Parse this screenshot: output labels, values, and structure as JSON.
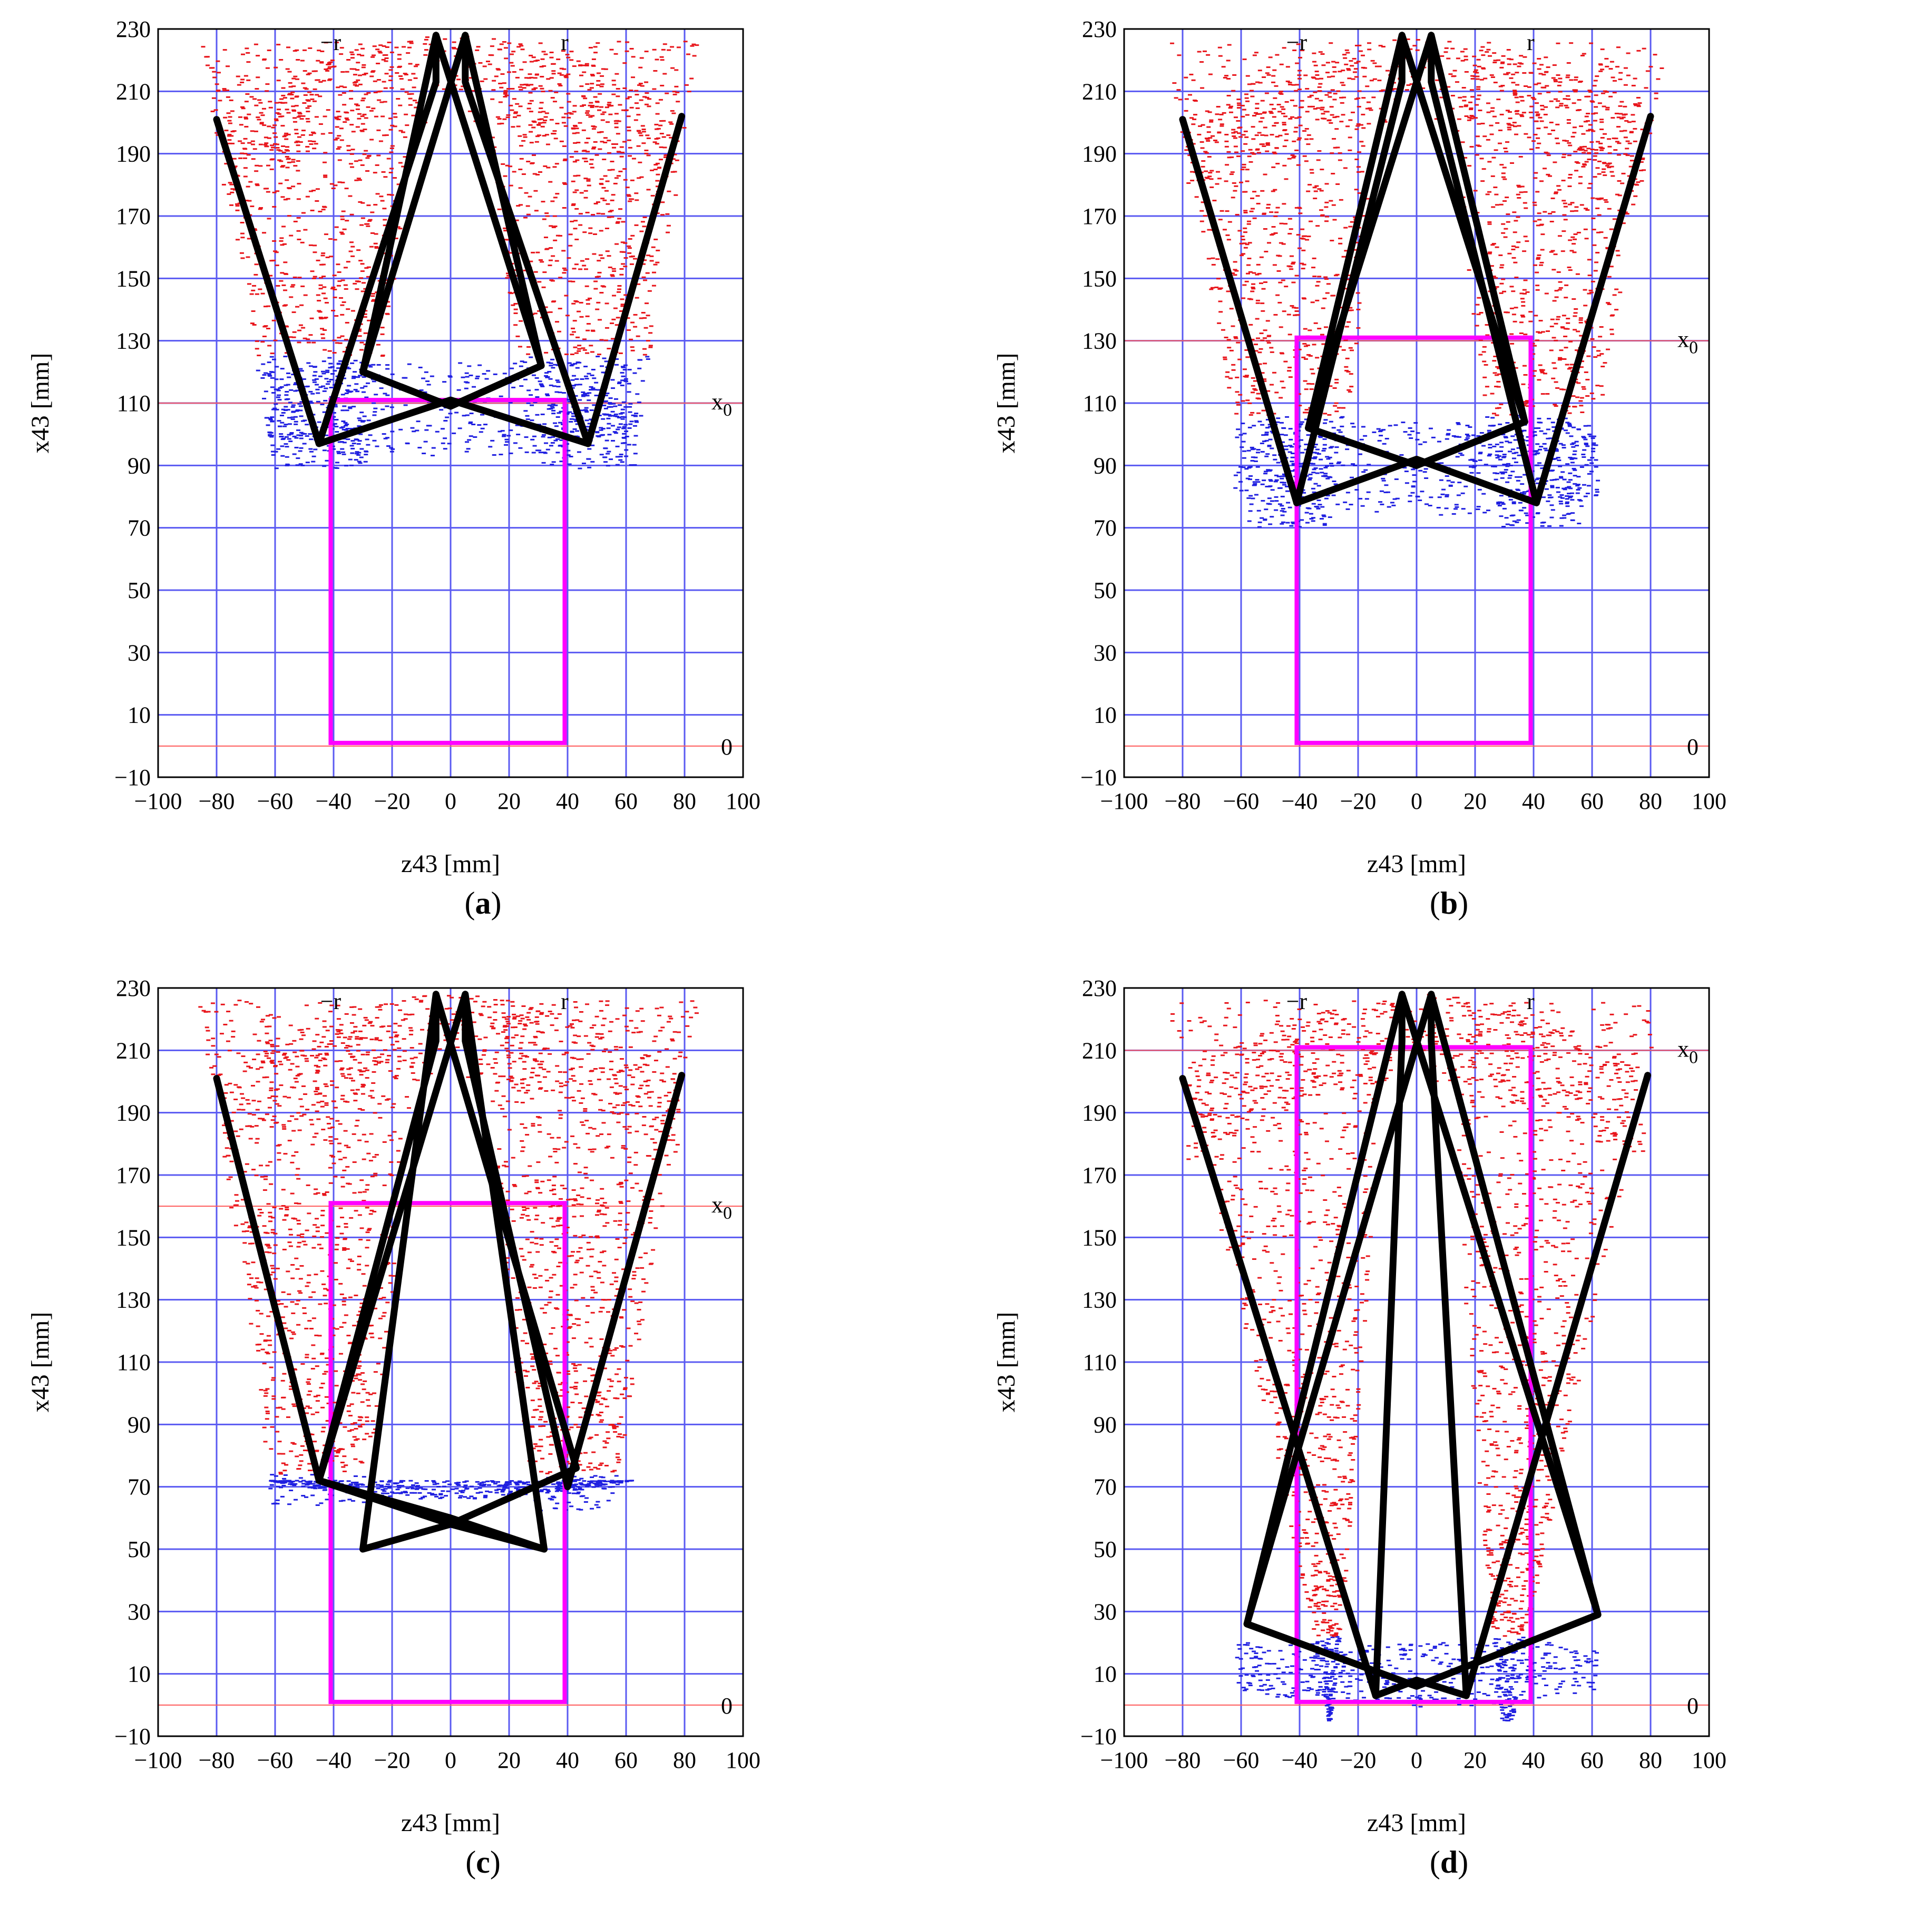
{
  "colors": {
    "grid": "#5a5af2",
    "cloud": "#e8151b",
    "cloud_low": "#1f1fe0",
    "mechanism": "#000000",
    "frame": "#ff00ff",
    "ref_line": "#ff5a5a"
  },
  "chart_data": [
    {
      "type": "scatter",
      "panel": "a",
      "caption_open": "(",
      "caption_letter": "a",
      "caption_close": ")",
      "xlabel": "z43 [mm]",
      "ylabel": "x43 [mm]",
      "xlim": [
        -100,
        100
      ],
      "ylim": [
        -10,
        230
      ],
      "xticks": [
        "−100",
        "−80",
        "−60",
        "−40",
        "−20",
        "0",
        "20",
        "40",
        "60",
        "80",
        "100"
      ],
      "yticks": [
        "−10",
        "10",
        "30",
        "50",
        "70",
        "90",
        "110",
        "130",
        "150",
        "170",
        "190",
        "210",
        "230"
      ],
      "grid": true,
      "annotations": {
        "minus_r": "−r",
        "r": "r",
        "x0_label": "x",
        "x0_sub": "0",
        "zero_label": "0"
      },
      "x0": 110,
      "frame_rect": {
        "z": [
          -41,
          39
        ],
        "x": [
          1,
          111
        ]
      },
      "mechanism": [
        {
          "name": "left",
          "points": [
            [
              -80,
              201
            ],
            [
              -45,
              97
            ],
            [
              -5,
              213
            ],
            [
              -5,
              228
            ],
            [
              -30,
              120
            ],
            [
              0,
              109
            ],
            [
              31,
              122
            ],
            [
              -5,
              228
            ]
          ]
        },
        {
          "name": "right",
          "points": [
            [
              79,
              202
            ],
            [
              47,
              97
            ],
            [
              5,
              213
            ],
            [
              5,
              228
            ],
            [
              31,
              122
            ],
            [
              0,
              109
            ],
            [
              -30,
              120
            ],
            [
              5,
              228
            ]
          ]
        },
        {
          "name": "lower",
          "points": [
            [
              -45,
              97
            ],
            [
              0,
              111
            ],
            [
              47,
              97
            ]
          ]
        }
      ]
    },
    {
      "type": "scatter",
      "panel": "b",
      "caption_open": "(",
      "caption_letter": "b",
      "caption_close": ")",
      "xlabel": "z43 [mm]",
      "ylabel": "x43 [mm]",
      "xlim": [
        -100,
        100
      ],
      "ylim": [
        -10,
        230
      ],
      "xticks": [
        "−100",
        "−80",
        "−60",
        "−40",
        "−20",
        "0",
        "20",
        "40",
        "60",
        "80",
        "100"
      ],
      "yticks": [
        "−10",
        "10",
        "30",
        "50",
        "70",
        "90",
        "110",
        "130",
        "150",
        "170",
        "190",
        "210",
        "230"
      ],
      "grid": true,
      "annotations": {
        "minus_r": "−r",
        "r": "r",
        "x0_label": "x",
        "x0_sub": "0",
        "zero_label": "0"
      },
      "x0": 130,
      "frame_rect": {
        "z": [
          -41,
          39
        ],
        "x": [
          1,
          131
        ]
      },
      "mechanism": [
        {
          "name": "left",
          "points": [
            [
              -80,
              201
            ],
            [
              -41,
              78
            ],
            [
              -5,
              213
            ],
            [
              -5,
              228
            ],
            [
              -37,
              102
            ],
            [
              0,
              90
            ],
            [
              37,
              104
            ],
            [
              -5,
              228
            ]
          ]
        },
        {
          "name": "right",
          "points": [
            [
              80,
              202
            ],
            [
              41,
              78
            ],
            [
              5,
              213
            ],
            [
              5,
              228
            ],
            [
              37,
              104
            ],
            [
              0,
              90
            ],
            [
              -37,
              102
            ],
            [
              5,
              228
            ]
          ]
        },
        {
          "name": "lower",
          "points": [
            [
              -41,
              78
            ],
            [
              0,
              92
            ],
            [
              41,
              78
            ]
          ]
        }
      ]
    },
    {
      "type": "scatter",
      "panel": "c",
      "caption_open": "(",
      "caption_letter": "c",
      "caption_close": ")",
      "xlabel": "z43 [mm]",
      "ylabel": "x43 [mm]",
      "xlim": [
        -100,
        100
      ],
      "ylim": [
        -10,
        230
      ],
      "xticks": [
        "−100",
        "−80",
        "−60",
        "−40",
        "−20",
        "0",
        "20",
        "40",
        "60",
        "80",
        "100"
      ],
      "yticks": [
        "−10",
        "10",
        "30",
        "50",
        "70",
        "90",
        "110",
        "130",
        "150",
        "170",
        "190",
        "210",
        "230"
      ],
      "grid": true,
      "annotations": {
        "minus_r": "−r",
        "r": "r",
        "x0_label": "x",
        "x0_sub": "0",
        "zero_label": "0"
      },
      "x0": 160,
      "frame_rect": {
        "z": [
          -41,
          39
        ],
        "x": [
          1,
          161
        ]
      },
      "mechanism": [
        {
          "name": "left",
          "points": [
            [
              -80,
              201
            ],
            [
              -45,
              72
            ],
            [
              -5,
              213
            ],
            [
              -5,
              228
            ],
            [
              -30,
              50
            ],
            [
              0,
              58
            ],
            [
              43,
              76
            ],
            [
              -5,
              228
            ]
          ]
        },
        {
          "name": "right",
          "points": [
            [
              79,
              202
            ],
            [
              40,
              70
            ],
            [
              5,
              213
            ],
            [
              5,
              228
            ],
            [
              32,
              50
            ],
            [
              0,
              58
            ],
            [
              -45,
              72
            ],
            [
              5,
              228
            ]
          ]
        },
        {
          "name": "lower",
          "points": [
            [
              -45,
              72
            ],
            [
              0,
              60
            ],
            [
              32,
              50
            ]
          ]
        }
      ]
    },
    {
      "type": "scatter",
      "panel": "d",
      "caption_open": "(",
      "caption_letter": "d",
      "caption_close": ")",
      "xlabel": "z43 [mm]",
      "ylabel": "x43 [mm]",
      "xlim": [
        -100,
        100
      ],
      "ylim": [
        -10,
        230
      ],
      "xticks": [
        "−100",
        "−80",
        "−60",
        "−40",
        "−20",
        "0",
        "20",
        "40",
        "60",
        "80",
        "100"
      ],
      "yticks": [
        "−10",
        "10",
        "30",
        "50",
        "70",
        "90",
        "110",
        "130",
        "150",
        "170",
        "190",
        "210",
        "230"
      ],
      "grid": true,
      "annotations": {
        "minus_r": "−r",
        "r": "r",
        "x0_label": "x",
        "x0_sub": "0",
        "zero_label": "0"
      },
      "x0": 210,
      "frame_rect": {
        "z": [
          -41,
          39
        ],
        "x": [
          1,
          211
        ]
      },
      "mechanism": [
        {
          "name": "left",
          "points": [
            [
              -80,
              201
            ],
            [
              -14,
              3
            ],
            [
              -5,
              213
            ],
            [
              -5,
              228
            ],
            [
              -58,
              26
            ],
            [
              0,
              6
            ],
            [
              62,
              29
            ],
            [
              -5,
              228
            ]
          ]
        },
        {
          "name": "right",
          "points": [
            [
              79,
              202
            ],
            [
              17,
              3
            ],
            [
              5,
              213
            ],
            [
              5,
              228
            ],
            [
              62,
              29
            ],
            [
              0,
              6
            ],
            [
              -58,
              26
            ],
            [
              5,
              228
            ]
          ]
        },
        {
          "name": "lower",
          "points": [
            [
              -14,
              3
            ],
            [
              0,
              8
            ],
            [
              17,
              3
            ]
          ]
        }
      ]
    }
  ]
}
